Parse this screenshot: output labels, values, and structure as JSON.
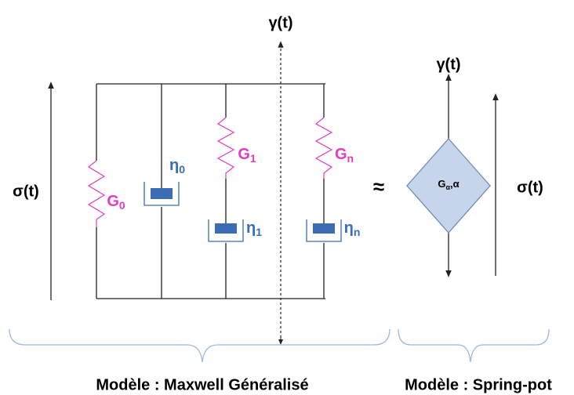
{
  "maxwell": {
    "strain_label": "γ(t)",
    "stress_label": "σ(t)",
    "springs": [
      {
        "symbol": "G",
        "sub": "0"
      },
      {
        "symbol": "G",
        "sub": "1"
      },
      {
        "symbol": "G",
        "sub": "n"
      }
    ],
    "dashpots": [
      {
        "symbol": "η",
        "sub": "0"
      },
      {
        "symbol": "η",
        "sub": "1"
      },
      {
        "symbol": "η",
        "sub": "n"
      }
    ],
    "caption": "Modèle : Maxwell Généralisé"
  },
  "approx": "≈",
  "springpot": {
    "strain_label": "γ(t)",
    "stress_label": "σ(t)",
    "symbol": "G",
    "sub": "α",
    "suffix": ",α",
    "caption": "Modèle : Spring-pot"
  }
}
